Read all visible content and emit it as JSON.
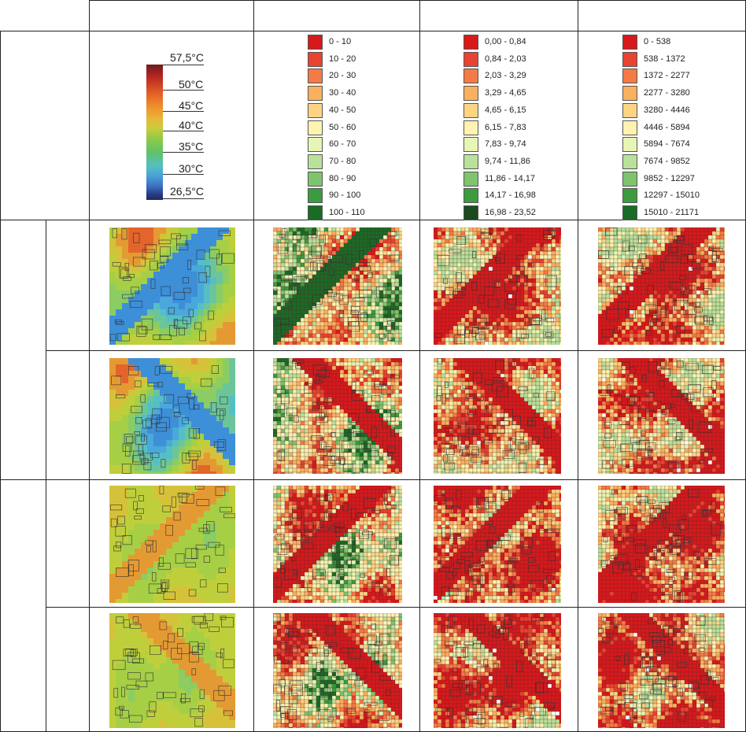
{
  "header_cells": [
    "",
    "",
    "",
    ""
  ],
  "temperature_scale": {
    "ticks": [
      "57,5°C",
      "50°C",
      "45°C",
      "40°C",
      "35°C",
      "30°C",
      "26,5°C"
    ]
  },
  "legends": [
    {
      "items": [
        {
          "label": "0 - 10",
          "color": "#d7191c"
        },
        {
          "label": "10 - 20",
          "color": "#e84330"
        },
        {
          "label": "20 - 30",
          "color": "#f47b45"
        },
        {
          "label": "30 - 40",
          "color": "#fbb05f"
        },
        {
          "label": "40 - 50",
          "color": "#fdd483"
        },
        {
          "label": "50 - 60",
          "color": "#fef3b0"
        },
        {
          "label": "60 - 70",
          "color": "#e7f5b5"
        },
        {
          "label": "70 - 80",
          "color": "#b8e19a"
        },
        {
          "label": "80 - 90",
          "color": "#7ec46d"
        },
        {
          "label": "90 - 100",
          "color": "#3d9b3f"
        },
        {
          "label": "100 - 110",
          "color": "#1a6b26"
        }
      ]
    },
    {
      "items": [
        {
          "label": "0,00 - 0,84",
          "color": "#d7191c"
        },
        {
          "label": "0,84 - 2,03",
          "color": "#e84330"
        },
        {
          "label": "2,03 - 3,29",
          "color": "#f47b45"
        },
        {
          "label": "3,29 - 4,65",
          "color": "#fbb05f"
        },
        {
          "label": "4,65 - 6,15",
          "color": "#fdd483"
        },
        {
          "label": "6,15 - 7,83",
          "color": "#fef3b0"
        },
        {
          "label": "7,83 - 9,74",
          "color": "#e7f5b5"
        },
        {
          "label": "9,74 - 11,86",
          "color": "#b8e19a"
        },
        {
          "label": "11,86 - 14,17",
          "color": "#7ec46d"
        },
        {
          "label": "14,17 - 16,98",
          "color": "#3d9b3f"
        },
        {
          "label": "16,98 - 23,52",
          "color": "#1a4a1e"
        }
      ]
    },
    {
      "items": [
        {
          "label": "0 - 538",
          "color": "#d7191c"
        },
        {
          "label": "538 - 1372",
          "color": "#e84330"
        },
        {
          "label": "1372 - 2277",
          "color": "#f47b45"
        },
        {
          "label": "2277 - 3280",
          "color": "#fbb05f"
        },
        {
          "label": "3280 - 4446",
          "color": "#fdd483"
        },
        {
          "label": "4446 - 5894",
          "color": "#fef3b0"
        },
        {
          "label": "5894 - 7674",
          "color": "#e7f5b5"
        },
        {
          "label": "7674 - 9852",
          "color": "#b8e19a"
        },
        {
          "label": "9852 - 12297",
          "color": "#7ec46d"
        },
        {
          "label": "12297 - 15010",
          "color": "#3d9b3f"
        },
        {
          "label": "15010 - 21171",
          "color": "#1a6b26"
        }
      ]
    }
  ],
  "colors": {
    "grid_line": "#222222",
    "building_outline": "#333333",
    "no_data": "#ffffff"
  }
}
